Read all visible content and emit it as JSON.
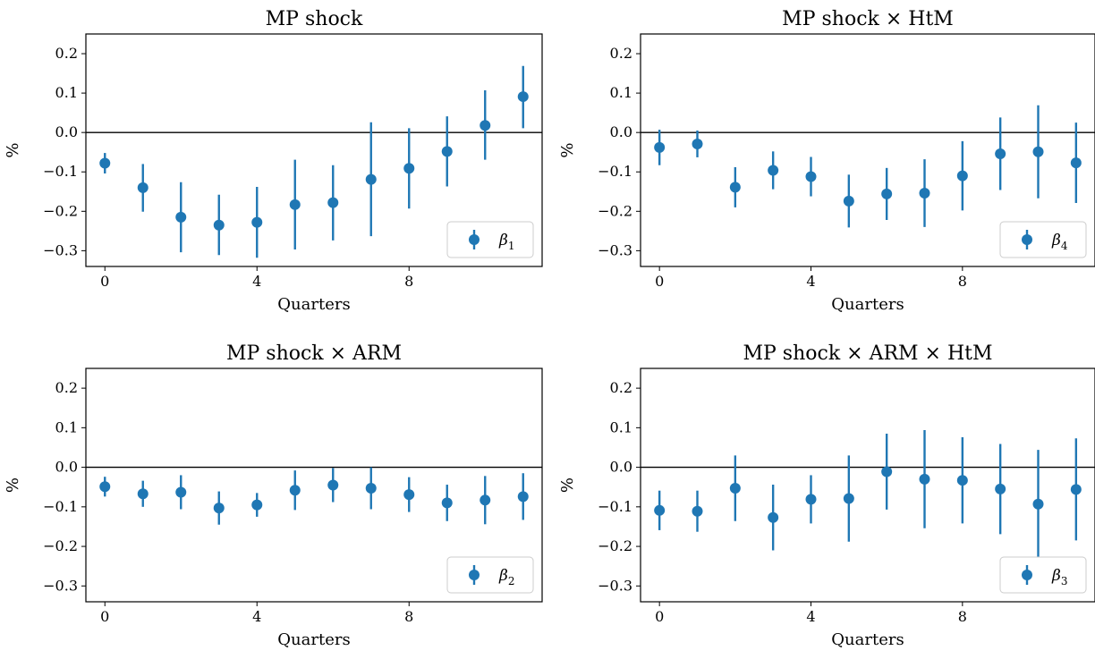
{
  "colors": {
    "series": "#1f77b4",
    "axis": "#000000",
    "zero_line": "#000000",
    "legend_border": "#cccccc"
  },
  "chart_data": [
    {
      "type": "scatter",
      "title": "MP shock",
      "xlabel": "Quarters",
      "ylabel": "%",
      "xticks": [
        0,
        4,
        8
      ],
      "yticks": [
        0.2,
        0.1,
        0.0,
        -0.1,
        -0.2,
        -0.3
      ],
      "ytick_labels": [
        "0.2",
        "0.1",
        "0.0",
        "−0.1",
        "−0.2",
        "−0.3"
      ],
      "xlim": [
        -0.5,
        11.5
      ],
      "ylim": [
        -0.34,
        0.25
      ],
      "zero_line": true,
      "legend": {
        "symbol": "β",
        "subscript": "1",
        "position": "lower right"
      },
      "series": [
        {
          "name": "β1",
          "type": "errorbar",
          "x": [
            0,
            1,
            2,
            3,
            4,
            5,
            6,
            7,
            8,
            9,
            10,
            11
          ],
          "y": [
            -0.078,
            -0.14,
            -0.215,
            -0.235,
            -0.228,
            -0.183,
            -0.178,
            -0.119,
            -0.091,
            -0.048,
            0.018,
            0.091
          ],
          "lower": [
            -0.104,
            -0.201,
            -0.304,
            -0.311,
            -0.318,
            -0.297,
            -0.274,
            -0.263,
            -0.193,
            -0.137,
            -0.069,
            0.011
          ],
          "upper": [
            -0.052,
            -0.08,
            -0.126,
            -0.158,
            -0.138,
            -0.069,
            -0.083,
            0.026,
            0.011,
            0.041,
            0.107,
            0.169
          ]
        }
      ]
    },
    {
      "type": "scatter",
      "title": "MP shock × HtM",
      "xlabel": "Quarters",
      "ylabel": "%",
      "xticks": [
        0,
        4,
        8
      ],
      "yticks": [
        0.2,
        0.1,
        0.0,
        -0.1,
        -0.2,
        -0.3
      ],
      "ytick_labels": [
        "0.2",
        "0.1",
        "0.0",
        "−0.1",
        "−0.2",
        "−0.3"
      ],
      "xlim": [
        -0.5,
        11.5
      ],
      "ylim": [
        -0.34,
        0.25
      ],
      "zero_line": true,
      "legend": {
        "symbol": "β",
        "subscript": "4",
        "position": "lower right"
      },
      "series": [
        {
          "name": "β4",
          "type": "errorbar",
          "x": [
            0,
            1,
            2,
            3,
            4,
            5,
            6,
            7,
            8,
            9,
            10,
            11
          ],
          "y": [
            -0.038,
            -0.029,
            -0.139,
            -0.096,
            -0.112,
            -0.174,
            -0.156,
            -0.154,
            -0.11,
            -0.054,
            -0.049,
            -0.077
          ],
          "lower": [
            -0.083,
            -0.063,
            -0.19,
            -0.144,
            -0.162,
            -0.241,
            -0.222,
            -0.24,
            -0.198,
            -0.146,
            -0.167,
            -0.179
          ],
          "upper": [
            0.007,
            0.005,
            -0.088,
            -0.048,
            -0.062,
            -0.107,
            -0.09,
            -0.068,
            -0.022,
            0.038,
            0.069,
            0.025
          ]
        }
      ]
    },
    {
      "type": "scatter",
      "title": "MP shock × ARM",
      "xlabel": "Quarters",
      "ylabel": "%",
      "xticks": [
        0,
        4,
        8
      ],
      "yticks": [
        0.2,
        0.1,
        0.0,
        -0.1,
        -0.2,
        -0.3
      ],
      "ytick_labels": [
        "0.2",
        "0.1",
        "0.0",
        "−0.1",
        "−0.2",
        "−0.3"
      ],
      "xlim": [
        -0.5,
        11.5
      ],
      "ylim": [
        -0.34,
        0.25
      ],
      "zero_line": true,
      "legend": {
        "symbol": "β",
        "subscript": "2",
        "position": "lower right"
      },
      "series": [
        {
          "name": "β2",
          "type": "errorbar",
          "x": [
            0,
            1,
            2,
            3,
            4,
            5,
            6,
            7,
            8,
            9,
            10,
            11
          ],
          "y": [
            -0.049,
            -0.067,
            -0.063,
            -0.103,
            -0.095,
            -0.058,
            -0.045,
            -0.053,
            -0.069,
            -0.09,
            -0.083,
            -0.074
          ],
          "lower": [
            -0.074,
            -0.1,
            -0.106,
            -0.145,
            -0.125,
            -0.108,
            -0.088,
            -0.106,
            -0.113,
            -0.136,
            -0.144,
            -0.133
          ],
          "upper": [
            -0.024,
            -0.034,
            -0.02,
            -0.061,
            -0.065,
            -0.008,
            -0.002,
            0.0,
            -0.025,
            -0.044,
            -0.022,
            -0.015
          ]
        }
      ]
    },
    {
      "type": "scatter",
      "title": "MP shock × ARM × HtM",
      "xlabel": "Quarters",
      "ylabel": "%",
      "xticks": [
        0,
        4,
        8
      ],
      "yticks": [
        0.2,
        0.1,
        0.0,
        -0.1,
        -0.2,
        -0.3
      ],
      "ytick_labels": [
        "0.2",
        "0.1",
        "0.0",
        "−0.1",
        "−0.2",
        "−0.3"
      ],
      "xlim": [
        -0.5,
        11.5
      ],
      "ylim": [
        -0.34,
        0.25
      ],
      "zero_line": true,
      "legend": {
        "symbol": "β",
        "subscript": "3",
        "position": "lower right"
      },
      "series": [
        {
          "name": "β3",
          "type": "errorbar",
          "x": [
            0,
            1,
            2,
            3,
            4,
            5,
            6,
            7,
            8,
            9,
            10,
            11
          ],
          "y": [
            -0.109,
            -0.111,
            -0.053,
            -0.127,
            -0.081,
            -0.079,
            -0.011,
            -0.03,
            -0.033,
            -0.055,
            -0.093,
            -0.056
          ],
          "lower": [
            -0.159,
            -0.163,
            -0.136,
            -0.21,
            -0.142,
            -0.188,
            -0.107,
            -0.154,
            -0.142,
            -0.169,
            -0.23,
            -0.185
          ],
          "upper": [
            -0.059,
            -0.059,
            0.03,
            -0.044,
            -0.02,
            0.03,
            0.085,
            0.094,
            0.076,
            0.059,
            0.044,
            0.073
          ]
        }
      ]
    }
  ]
}
